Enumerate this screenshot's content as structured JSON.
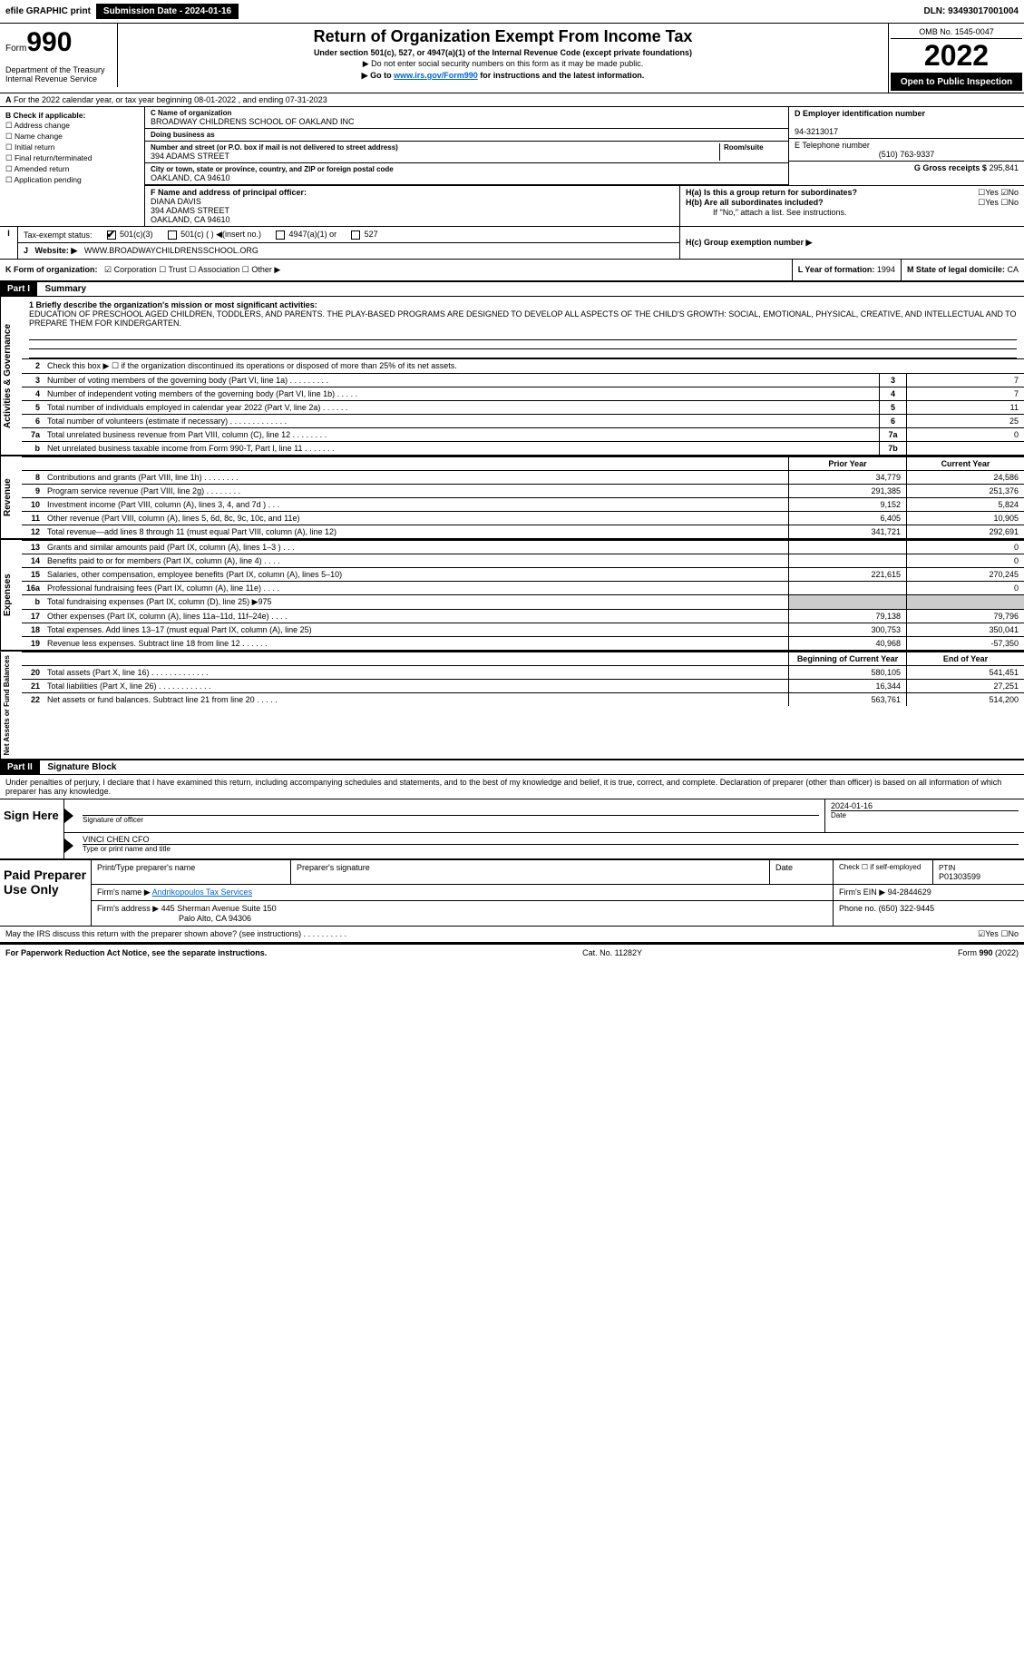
{
  "topbar": {
    "efile": "efile GRAPHIC print",
    "submission_label": "Submission Date - 2024-01-16",
    "dln": "DLN: 93493017001004"
  },
  "header": {
    "form_prefix": "Form",
    "form_num": "990",
    "title": "Return of Organization Exempt From Income Tax",
    "sub": "Under section 501(c), 527, or 4947(a)(1) of the Internal Revenue Code (except private foundations)",
    "note1": "▶ Do not enter social security numbers on this form as it may be made public.",
    "note2a": "▶ Go to ",
    "note2_link": "www.irs.gov/Form990",
    "note2b": " for instructions and the latest information.",
    "omb": "OMB No. 1545-0047",
    "year": "2022",
    "open": "Open to Public Inspection",
    "dept": "Department of the Treasury Internal Revenue Service"
  },
  "period": "For the 2022 calendar year, or tax year beginning 08-01-2022    , and ending 07-31-2023",
  "box_b": {
    "hdr": "B Check if applicable:",
    "o1": "☐ Address change",
    "o2": "☐ Name change",
    "o3": "☐ Initial return",
    "o4": "☐ Final return/terminated",
    "o5": "☐ Amended return",
    "o6": "☐ Application pending"
  },
  "org": {
    "name_lbl": "C Name of organization",
    "name": "BROADWAY CHILDRENS SCHOOL OF OAKLAND INC",
    "dba_lbl": "Doing business as",
    "dba": "",
    "addr_lbl": "Number and street (or P.O. box if mail is not delivered to street address)",
    "room_lbl": "Room/suite",
    "addr": "394 ADAMS STREET",
    "city_lbl": "City or town, state or province, country, and ZIP or foreign postal code",
    "city": "OAKLAND, CA  94610",
    "officer_lbl": "F Name and address of principal officer:",
    "officer_name": "DIANA DAVIS",
    "officer_addr": "394 ADAMS STREET",
    "officer_city": "OAKLAND, CA  94610"
  },
  "right": {
    "ein_lbl": "D Employer identification number",
    "ein": "94-3213017",
    "tel_lbl": "E Telephone number",
    "tel": "(510) 763-9337",
    "gross_lbl": "G Gross receipts $",
    "gross": "295,841",
    "ha": "H(a)  Is this a group return for subordinates?",
    "ha_ans": "☐Yes ☑No",
    "hb": "H(b)  Are all subordinates included?",
    "hb_ans": "☐Yes ☐No",
    "hb_note": "If \"No,\" attach a list. See instructions.",
    "hc": "H(c)  Group exemption number ▶"
  },
  "status": {
    "lbl": "Tax-exempt status:",
    "o1": "501(c)(3)",
    "o2": "501(c) (  ) ◀(insert no.)",
    "o3": "4947(a)(1) or",
    "o4": "527"
  },
  "website": {
    "lbl": "Website: ▶",
    "val": "WWW.BROADWAYCHILDRENSSCHOOL.ORG"
  },
  "ktype": {
    "lbl": "K Form of organization:",
    "opts": "☑ Corporation  ☐ Trust  ☐ Association  ☐ Other ▶",
    "l_lbl": "L Year of formation:",
    "l_val": "1994",
    "m_lbl": "M State of legal domicile:",
    "m_val": "CA"
  },
  "part1": {
    "hdr": "Part I",
    "title": "Summary"
  },
  "mission_lbl": "1  Briefly describe the organization's mission or most significant activities:",
  "mission": "EDUCATION OF PRESCHOOL AGED CHILDREN, TODDLERS, AND PARENTS. THE PLAY-BASED PROGRAMS ARE DESIGNED TO DEVELOP ALL ASPECTS OF THE CHILD'S GROWTH: SOCIAL, EMOTIONAL, PHYSICAL, CREATIVE, AND INTELLECTUAL AND TO PREPARE THEM FOR KINDERGARTEN.",
  "gov_rows": [
    {
      "n": "2",
      "d": "Check this box ▶ ☐  if the organization discontinued its operations or disposed of more than 25% of its net assets.",
      "box": "",
      "val": ""
    },
    {
      "n": "3",
      "d": "Number of voting members of the governing body (Part VI, line 1a)  .   .   .   .   .   .   .   .   .",
      "box": "3",
      "val": "7"
    },
    {
      "n": "4",
      "d": "Number of independent voting members of the governing body (Part VI, line 1b)  .   .   .   .   .",
      "box": "4",
      "val": "7"
    },
    {
      "n": "5",
      "d": "Total number of individuals employed in calendar year 2022 (Part V, line 2a)  .   .   .   .   .   .",
      "box": "5",
      "val": "11"
    },
    {
      "n": "6",
      "d": "Total number of volunteers (estimate if necessary)   .   .   .   .   .   .   .   .   .   .   .   .   .",
      "box": "6",
      "val": "25"
    },
    {
      "n": "7a",
      "d": "Total unrelated business revenue from Part VIII, column (C), line 12  .   .   .   .   .   .   .   .",
      "box": "7a",
      "val": "0"
    },
    {
      "n": "b",
      "d": "Net unrelated business taxable income from Form 990-T, Part I, line 11  .   .   .   .   .   .   .",
      "box": "7b",
      "val": ""
    }
  ],
  "col_hdrs": {
    "prior": "Prior Year",
    "current": "Current Year"
  },
  "revenue_rows": [
    {
      "n": "8",
      "d": "Contributions and grants (Part VIII, line 1h)   .   .   .   .   .   .   .   .",
      "v1": "34,779",
      "v2": "24,586"
    },
    {
      "n": "9",
      "d": "Program service revenue (Part VIII, line 2g)   .   .   .   .   .   .   .   .",
      "v1": "291,385",
      "v2": "251,376"
    },
    {
      "n": "10",
      "d": "Investment income (Part VIII, column (A), lines 3, 4, and 7d )  .   .   .",
      "v1": "9,152",
      "v2": "5,824"
    },
    {
      "n": "11",
      "d": "Other revenue (Part VIII, column (A), lines 5, 6d, 8c, 9c, 10c, and 11e)",
      "v1": "6,405",
      "v2": "10,905"
    },
    {
      "n": "12",
      "d": "Total revenue—add lines 8 through 11 (must equal Part VIII, column (A), line 12)",
      "v1": "341,721",
      "v2": "292,691"
    }
  ],
  "expense_rows": [
    {
      "n": "13",
      "d": "Grants and similar amounts paid (Part IX, column (A), lines 1–3 )  .   .   .",
      "v1": "",
      "v2": "0"
    },
    {
      "n": "14",
      "d": "Benefits paid to or for members (Part IX, column (A), line 4)  .   .   .   .",
      "v1": "",
      "v2": "0"
    },
    {
      "n": "15",
      "d": "Salaries, other compensation, employee benefits (Part IX, column (A), lines 5–10)",
      "v1": "221,615",
      "v2": "270,245"
    },
    {
      "n": "16a",
      "d": "Professional fundraising fees (Part IX, column (A), line 11e)  .   .   .   .",
      "v1": "",
      "v2": "0"
    },
    {
      "n": "b",
      "d": "Total fundraising expenses (Part IX, column (D), line 25) ▶975",
      "v1": "GRAY",
      "v2": "GRAY"
    },
    {
      "n": "17",
      "d": "Other expenses (Part IX, column (A), lines 11a–11d, 11f–24e)  .   .   .   .",
      "v1": "79,138",
      "v2": "79,796"
    },
    {
      "n": "18",
      "d": "Total expenses. Add lines 13–17 (must equal Part IX, column (A), line 25)",
      "v1": "300,753",
      "v2": "350,041"
    },
    {
      "n": "19",
      "d": "Revenue less expenses. Subtract line 18 from line 12  .   .   .   .   .   .",
      "v1": "40,968",
      "v2": "-57,350"
    }
  ],
  "net_hdrs": {
    "beg": "Beginning of Current Year",
    "end": "End of Year"
  },
  "net_rows": [
    {
      "n": "20",
      "d": "Total assets (Part X, line 16)  .   .   .   .   .   .   .   .   .   .   .   .   .",
      "v1": "580,105",
      "v2": "541,451"
    },
    {
      "n": "21",
      "d": "Total liabilities (Part X, line 26)  .   .   .   .   .   .   .   .   .   .   .   .",
      "v1": "16,344",
      "v2": "27,251"
    },
    {
      "n": "22",
      "d": "Net assets or fund balances. Subtract line 21 from line 20  .   .   .   .   .",
      "v1": "563,761",
      "v2": "514,200"
    }
  ],
  "part2": {
    "hdr": "Part II",
    "title": "Signature Block"
  },
  "penalty": "Under penalties of perjury, I declare that I have examined this return, including accompanying schedules and statements, and to the best of my knowledge and belief, it is true, correct, and complete. Declaration of preparer (other than officer) is based on all information of which preparer has any knowledge.",
  "sign": {
    "here": "Sign Here",
    "sig_lbl": "Signature of officer",
    "date": "2024-01-16",
    "date_lbl": "Date",
    "name": "VINCI CHEN CFO",
    "name_lbl": "Type or print name and title"
  },
  "paid": {
    "hdr": "Paid Preparer Use Only",
    "c1": "Print/Type preparer's name",
    "c2": "Preparer's signature",
    "c3": "Date",
    "c4": "Check ☐ if self-employed",
    "c5_lbl": "PTIN",
    "c5": "P01303599",
    "firm_lbl": "Firm's name    ▶",
    "firm": "Andrikopoulos Tax Services",
    "ein_lbl": "Firm's EIN ▶",
    "ein": "94-2844629",
    "addr_lbl": "Firm's address ▶",
    "addr": "445 Sherman Avenue Suite 150",
    "addr2": "Palo Alto, CA  94306",
    "phone_lbl": "Phone no.",
    "phone": "(650) 322-9445"
  },
  "discuss": "May the IRS discuss this return with the preparer shown above? (see instructions)  .   .   .   .   .   .   .   .   .   .",
  "discuss_ans": "☑Yes  ☐No",
  "footer": {
    "l": "For Paperwork Reduction Act Notice, see the separate instructions.",
    "c": "Cat. No. 11282Y",
    "r": "Form 990 (2022)"
  },
  "vlabels": {
    "gov": "Activities & Governance",
    "rev": "Revenue",
    "exp": "Expenses",
    "net": "Net Assets or Fund Balances"
  }
}
